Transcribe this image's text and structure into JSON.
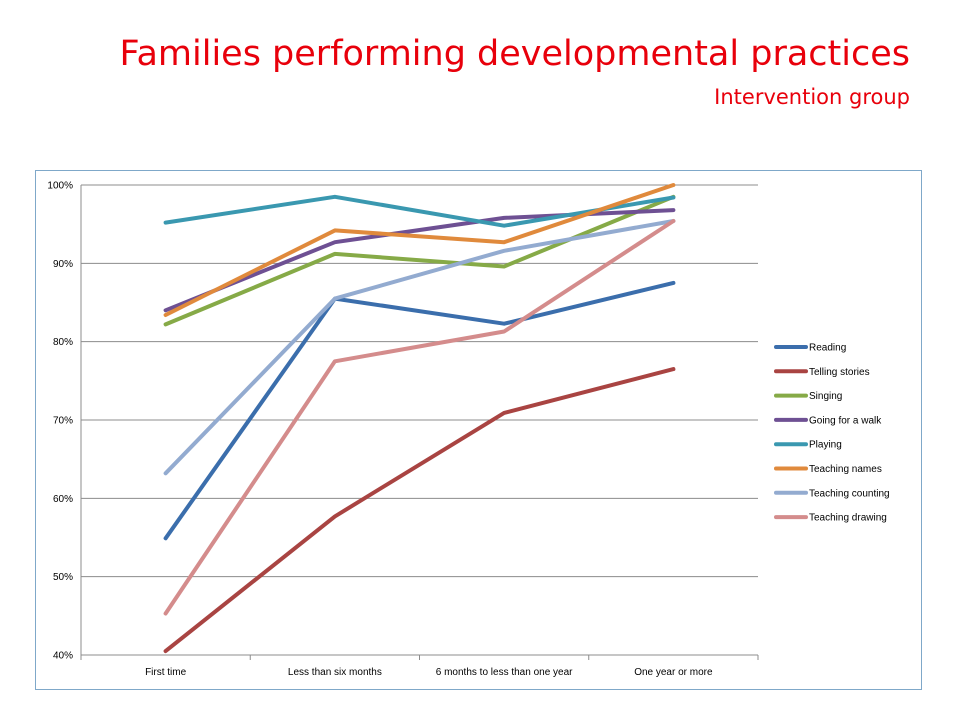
{
  "slide": {
    "title": "Families performing developmental practices",
    "subtitle": "Intervention group"
  },
  "chart_data": {
    "type": "line",
    "categories": [
      "First time",
      "Less than six months",
      "6 months to less than one year",
      "One year or more"
    ],
    "ylim": [
      40,
      100
    ],
    "yticks": [
      40,
      50,
      60,
      70,
      80,
      90,
      100
    ],
    "ytick_labels": [
      "40%",
      "50%",
      "60%",
      "70%",
      "80%",
      "90%",
      "100%"
    ],
    "grid": true,
    "legend": "right",
    "series": [
      {
        "name": "Reading",
        "color": "#3b6eac",
        "values": [
          54.9,
          85.5,
          82.3,
          87.5
        ]
      },
      {
        "name": "Telling stories",
        "color": "#a94442",
        "values": [
          40.5,
          57.7,
          70.9,
          76.5
        ]
      },
      {
        "name": "Singing",
        "color": "#86aa47",
        "values": [
          82.2,
          91.2,
          89.6,
          98.5
        ]
      },
      {
        "name": "Going for a walk",
        "color": "#6e5093",
        "values": [
          84.0,
          92.7,
          95.8,
          96.8
        ]
      },
      {
        "name": "Playing",
        "color": "#3a98b0",
        "values": [
          95.2,
          98.5,
          94.8,
          98.4
        ]
      },
      {
        "name": "Teaching names",
        "color": "#e08a3c",
        "values": [
          83.4,
          94.2,
          92.7,
          100.0
        ]
      },
      {
        "name": "Teaching counting",
        "color": "#93abd0",
        "values": [
          63.2,
          85.5,
          91.6,
          95.4
        ]
      },
      {
        "name": "Teaching drawing",
        "color": "#d48c8c",
        "values": [
          45.3,
          77.5,
          81.3,
          95.4
        ]
      }
    ]
  }
}
